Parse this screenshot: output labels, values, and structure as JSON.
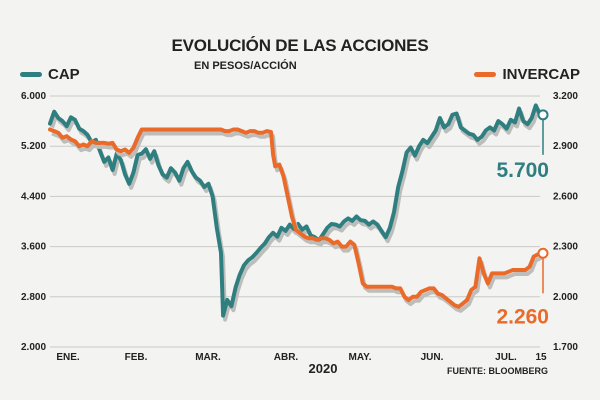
{
  "chart_data": {
    "type": "line",
    "title": "EVOLUCIÓN DE LAS ACCIONES",
    "subtitle": "EN PESOS/ACCIÓN",
    "year_label": "2020",
    "source": "FUENTE: BLOOMBERG",
    "grid": true,
    "legend_placement": "top",
    "x_ticks": [
      "ENE.",
      "FEB.",
      "MAR.",
      "ABR.",
      "MAY.",
      "JUN.",
      "JUL.",
      "15"
    ],
    "y_left": {
      "ticks": [
        "6.000",
        "5.200",
        "4.400",
        "3.600",
        "2.800",
        "2.000"
      ],
      "ylim": [
        2000,
        6000
      ]
    },
    "y_right": {
      "ticks": [
        "3.200",
        "2.900",
        "2.600",
        "2.300",
        "2.000",
        "1.700"
      ],
      "ylim": [
        1700,
        3200
      ]
    },
    "series": [
      {
        "name": "CAP",
        "axis": "left",
        "color": "#2f7f80",
        "end_label": "5.700",
        "points": [
          [
            0,
            5560
          ],
          [
            2,
            5750
          ],
          [
            4,
            5650
          ],
          [
            6,
            5600
          ],
          [
            8,
            5520
          ],
          [
            10,
            5660
          ],
          [
            12,
            5620
          ],
          [
            14,
            5480
          ],
          [
            16,
            5440
          ],
          [
            18,
            5380
          ],
          [
            20,
            5260
          ],
          [
            22,
            5300
          ],
          [
            24,
            5120
          ],
          [
            26,
            4950
          ],
          [
            28,
            5020
          ],
          [
            30,
            4820
          ],
          [
            32,
            5080
          ],
          [
            34,
            4980
          ],
          [
            36,
            4750
          ],
          [
            38,
            4600
          ],
          [
            40,
            4780
          ],
          [
            42,
            5060
          ],
          [
            44,
            5080
          ],
          [
            46,
            5150
          ],
          [
            48,
            5000
          ],
          [
            50,
            5120
          ],
          [
            52,
            4900
          ],
          [
            54,
            4750
          ],
          [
            56,
            4700
          ],
          [
            58,
            4850
          ],
          [
            60,
            4780
          ],
          [
            62,
            4650
          ],
          [
            64,
            4850
          ],
          [
            66,
            4950
          ],
          [
            68,
            4800
          ],
          [
            70,
            4700
          ],
          [
            72,
            4650
          ],
          [
            74,
            4550
          ],
          [
            76,
            4600
          ],
          [
            78,
            4400
          ],
          [
            80,
            3900
          ],
          [
            82,
            3500
          ],
          [
            83,
            2500
          ],
          [
            85,
            2750
          ],
          [
            87,
            2650
          ],
          [
            89,
            2950
          ],
          [
            91,
            3150
          ],
          [
            93,
            3300
          ],
          [
            95,
            3380
          ],
          [
            97,
            3430
          ],
          [
            99,
            3500
          ],
          [
            101,
            3580
          ],
          [
            103,
            3650
          ],
          [
            105,
            3750
          ],
          [
            107,
            3820
          ],
          [
            109,
            3760
          ],
          [
            111,
            3900
          ],
          [
            113,
            3850
          ],
          [
            115,
            3950
          ],
          [
            117,
            3880
          ],
          [
            119,
            3960
          ],
          [
            121,
            3870
          ],
          [
            123,
            3920
          ],
          [
            125,
            3780
          ],
          [
            127,
            3750
          ],
          [
            129,
            3700
          ],
          [
            131,
            3800
          ],
          [
            133,
            3900
          ],
          [
            135,
            3960
          ],
          [
            137,
            3950
          ],
          [
            139,
            3920
          ],
          [
            141,
            4000
          ],
          [
            143,
            4050
          ],
          [
            145,
            4010
          ],
          [
            147,
            4080
          ],
          [
            149,
            4020
          ],
          [
            151,
            4010
          ],
          [
            153,
            3950
          ],
          [
            155,
            4000
          ],
          [
            157,
            3950
          ],
          [
            159,
            3850
          ],
          [
            161,
            3750
          ],
          [
            163,
            3900
          ],
          [
            165,
            4150
          ],
          [
            167,
            4550
          ],
          [
            169,
            4800
          ],
          [
            171,
            5100
          ],
          [
            173,
            5180
          ],
          [
            175,
            5050
          ],
          [
            177,
            5200
          ],
          [
            179,
            5300
          ],
          [
            181,
            5250
          ],
          [
            183,
            5350
          ],
          [
            185,
            5450
          ],
          [
            187,
            5650
          ],
          [
            189,
            5500
          ],
          [
            191,
            5550
          ],
          [
            193,
            5700
          ],
          [
            195,
            5720
          ],
          [
            197,
            5500
          ],
          [
            199,
            5450
          ],
          [
            201,
            5400
          ],
          [
            203,
            5380
          ],
          [
            205,
            5300
          ],
          [
            207,
            5350
          ],
          [
            209,
            5450
          ],
          [
            211,
            5500
          ],
          [
            213,
            5450
          ],
          [
            215,
            5600
          ],
          [
            217,
            5550
          ],
          [
            219,
            5480
          ],
          [
            221,
            5620
          ],
          [
            223,
            5580
          ],
          [
            225,
            5800
          ],
          [
            227,
            5600
          ],
          [
            229,
            5550
          ],
          [
            231,
            5650
          ],
          [
            233,
            5850
          ],
          [
            235,
            5700
          ]
        ]
      },
      {
        "name": "INVERCAP",
        "axis": "right",
        "color": "#ea6a2a",
        "end_label": "2.260",
        "points": [
          [
            0,
            3000
          ],
          [
            2,
            2990
          ],
          [
            4,
            2980
          ],
          [
            6,
            2950
          ],
          [
            8,
            2960
          ],
          [
            10,
            2940
          ],
          [
            12,
            2930
          ],
          [
            14,
            2900
          ],
          [
            16,
            2910
          ],
          [
            18,
            2900
          ],
          [
            20,
            2930
          ],
          [
            22,
            2920
          ],
          [
            24,
            2920
          ],
          [
            26,
            2920
          ],
          [
            28,
            2915
          ],
          [
            30,
            2920
          ],
          [
            32,
            2880
          ],
          [
            34,
            2870
          ],
          [
            36,
            2880
          ],
          [
            38,
            2860
          ],
          [
            40,
            2890
          ],
          [
            42,
            2950
          ],
          [
            44,
            3000
          ],
          [
            46,
            3000
          ],
          [
            48,
            3000
          ],
          [
            50,
            3000
          ],
          [
            52,
            3000
          ],
          [
            54,
            3000
          ],
          [
            56,
            3000
          ],
          [
            58,
            3000
          ],
          [
            60,
            3000
          ],
          [
            62,
            3000
          ],
          [
            64,
            3000
          ],
          [
            66,
            3000
          ],
          [
            68,
            3000
          ],
          [
            70,
            3000
          ],
          [
            72,
            3000
          ],
          [
            74,
            3000
          ],
          [
            76,
            3000
          ],
          [
            78,
            3000
          ],
          [
            80,
            3000
          ],
          [
            82,
            3000
          ],
          [
            84,
            2990
          ],
          [
            86,
            2990
          ],
          [
            88,
            3000
          ],
          [
            90,
            3000
          ],
          [
            92,
            2990
          ],
          [
            94,
            2980
          ],
          [
            96,
            2990
          ],
          [
            98,
            2990
          ],
          [
            100,
            2980
          ],
          [
            102,
            2980
          ],
          [
            104,
            2990
          ],
          [
            106,
            2985
          ],
          [
            107,
            2850
          ],
          [
            108,
            2780
          ],
          [
            110,
            2790
          ],
          [
            112,
            2720
          ],
          [
            114,
            2600
          ],
          [
            116,
            2480
          ],
          [
            118,
            2400
          ],
          [
            120,
            2380
          ],
          [
            122,
            2360
          ],
          [
            124,
            2350
          ],
          [
            126,
            2350
          ],
          [
            128,
            2340
          ],
          [
            130,
            2350
          ],
          [
            132,
            2350
          ],
          [
            134,
            2340
          ],
          [
            136,
            2320
          ],
          [
            138,
            2330
          ],
          [
            140,
            2300
          ],
          [
            142,
            2300
          ],
          [
            144,
            2330
          ],
          [
            146,
            2310
          ],
          [
            148,
            2200
          ],
          [
            150,
            2080
          ],
          [
            152,
            2060
          ],
          [
            154,
            2060
          ],
          [
            156,
            2060
          ],
          [
            158,
            2060
          ],
          [
            160,
            2060
          ],
          [
            162,
            2060
          ],
          [
            164,
            2060
          ],
          [
            166,
            2050
          ],
          [
            168,
            2050
          ],
          [
            170,
            2000
          ],
          [
            172,
            1980
          ],
          [
            174,
            2000
          ],
          [
            176,
            2000
          ],
          [
            178,
            2030
          ],
          [
            180,
            2040
          ],
          [
            182,
            2050
          ],
          [
            184,
            2050
          ],
          [
            186,
            2020
          ],
          [
            188,
            2010
          ],
          [
            190,
            1990
          ],
          [
            192,
            1970
          ],
          [
            194,
            1950
          ],
          [
            196,
            1940
          ],
          [
            198,
            1960
          ],
          [
            200,
            1980
          ],
          [
            202,
            2040
          ],
          [
            204,
            2060
          ],
          [
            206,
            2230
          ],
          [
            208,
            2140
          ],
          [
            210,
            2080
          ],
          [
            212,
            2140
          ],
          [
            214,
            2140
          ],
          [
            216,
            2140
          ],
          [
            218,
            2140
          ],
          [
            220,
            2150
          ],
          [
            222,
            2160
          ],
          [
            224,
            2160
          ],
          [
            226,
            2160
          ],
          [
            228,
            2160
          ],
          [
            230,
            2180
          ],
          [
            232,
            2240
          ],
          [
            235,
            2260
          ]
        ]
      }
    ]
  }
}
